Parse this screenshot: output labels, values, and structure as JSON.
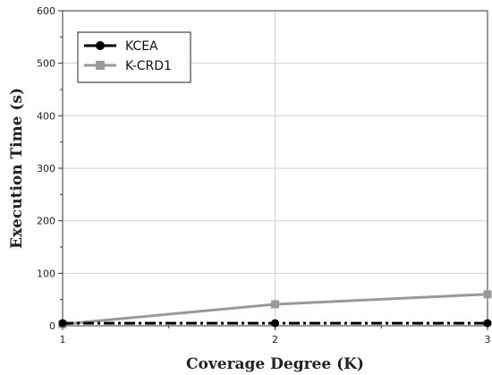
{
  "chart_data": {
    "type": "line",
    "title": "",
    "xlabel": "Coverage Degree (K)",
    "ylabel": "Execution Time (s)",
    "xlim": [
      1,
      3
    ],
    "ylim": [
      0,
      600
    ],
    "x_ticks": [
      "1",
      "2",
      "3"
    ],
    "y_ticks": [
      "0",
      "100",
      "200",
      "300",
      "400",
      "500",
      "600"
    ],
    "grid": true,
    "legend_position": "top-left",
    "series": [
      {
        "name": "KCEA",
        "x": [
          1,
          2,
          3
        ],
        "values": [
          5,
          5,
          5
        ],
        "color": "#000000",
        "marker": "circle",
        "line_style": "dash-dot"
      },
      {
        "name": "K-CRD1",
        "x": [
          1,
          2,
          3
        ],
        "values": [
          3,
          41,
          60
        ],
        "color": "#999999",
        "marker": "square",
        "line_style": "solid"
      }
    ]
  }
}
